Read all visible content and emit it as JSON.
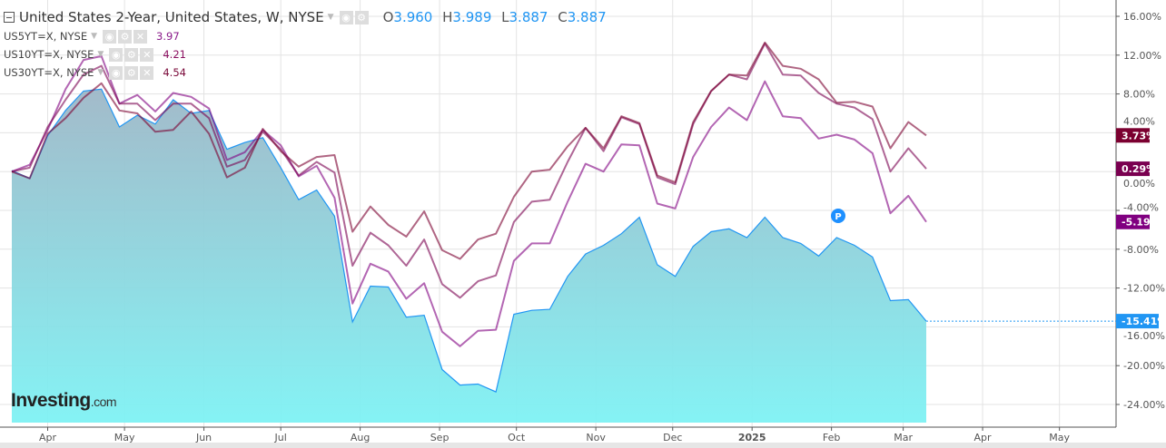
{
  "legend": {
    "title": "United States 2-Year, United States, W, NYSE",
    "ohlc": {
      "o_label": "O",
      "o": "3.960",
      "h_label": "H",
      "h": "3.989",
      "l_label": "L",
      "l": "3.887",
      "c_label": "C",
      "c": "3.887"
    },
    "overlays": [
      {
        "name": "US5YT=X, NYSE",
        "value": "3.97",
        "color": "#8a1a8a"
      },
      {
        "name": "US10YT=X, NYSE",
        "value": "4.21",
        "color": "#8b1060"
      },
      {
        "name": "US30YT=X, NYSE",
        "value": "4.54",
        "color": "#7a0a3a"
      }
    ],
    "icons": [
      "eye-icon",
      "gear-icon",
      "close-icon"
    ]
  },
  "logo": {
    "text": "Investing",
    "suffix": ".com"
  },
  "marker": {
    "label": "P",
    "color": "#1e90ff"
  },
  "chart_data": {
    "type": "line",
    "x": [
      "2024-03-18",
      "2024-03-25",
      "2024-04-01",
      "2024-04-08",
      "2024-04-15",
      "2024-04-22",
      "2024-04-29",
      "2024-05-06",
      "2024-05-13",
      "2024-05-20",
      "2024-05-27",
      "2024-06-03",
      "2024-06-10",
      "2024-06-17",
      "2024-06-24",
      "2024-07-01",
      "2024-07-08",
      "2024-07-15",
      "2024-07-22",
      "2024-07-29",
      "2024-08-05",
      "2024-08-12",
      "2024-08-19",
      "2024-08-26",
      "2024-09-02",
      "2024-09-09",
      "2024-09-16",
      "2024-09-23",
      "2024-09-30",
      "2024-10-07",
      "2024-10-14",
      "2024-10-21",
      "2024-10-28",
      "2024-11-04",
      "2024-11-11",
      "2024-11-18",
      "2024-11-25",
      "2024-12-02",
      "2024-12-09",
      "2024-12-16",
      "2024-12-23",
      "2024-12-30",
      "2025-01-06",
      "2025-01-13",
      "2025-01-20",
      "2025-01-27",
      "2025-02-03",
      "2025-02-10",
      "2025-02-17",
      "2025-02-24",
      "2025-03-03",
      "2025-03-10"
    ],
    "series": [
      {
        "name": "United States 2-Year",
        "style": "area",
        "color": "#2196f3",
        "last_label": "-15.41%",
        "values": [
          0.1,
          -0.7,
          3.7,
          6.3,
          8.3,
          8.5,
          4.6,
          5.8,
          4.9,
          7.4,
          6.0,
          6.3,
          2.3,
          3.0,
          3.5,
          0.4,
          -2.9,
          -1.9,
          -4.6,
          -15.5,
          -11.8,
          -11.9,
          -15.0,
          -14.8,
          -20.4,
          -22.0,
          -21.9,
          -22.7,
          -14.7,
          -14.3,
          -14.2,
          -10.8,
          -8.5,
          -7.6,
          -6.4,
          -4.7,
          -9.6,
          -10.8,
          -7.7,
          -6.2,
          -5.9,
          -6.8,
          -4.7,
          -6.8,
          -7.4,
          -8.7,
          -6.8,
          -7.6,
          -8.8,
          -13.3,
          -13.2,
          -15.41
        ]
      },
      {
        "name": "US5YT=X",
        "style": "line",
        "color": "#800080",
        "last_label": "-5.19%",
        "values": [
          0.0,
          0.7,
          4.3,
          8.5,
          11.5,
          11.9,
          7.0,
          7.9,
          6.2,
          8.1,
          7.7,
          6.5,
          1.2,
          2.0,
          4.3,
          2.7,
          -0.5,
          0.6,
          -2.7,
          -13.6,
          -9.5,
          -10.3,
          -13.1,
          -11.5,
          -16.5,
          -18.0,
          -16.4,
          -16.3,
          -9.2,
          -7.4,
          -7.4,
          -3.1,
          0.8,
          0.0,
          2.8,
          2.7,
          -3.3,
          -3.8,
          1.5,
          4.6,
          6.6,
          5.3,
          9.3,
          5.7,
          5.5,
          3.4,
          3.8,
          3.3,
          1.9,
          -4.3,
          -2.5,
          -5.19
        ]
      },
      {
        "name": "US10YT=X",
        "style": "line",
        "color": "#7a0050",
        "last_label": "0.29%",
        "values": [
          0.0,
          0.4,
          4.6,
          7.4,
          10.0,
          10.9,
          7.0,
          7.0,
          5.3,
          7.0,
          7.0,
          5.5,
          0.5,
          1.2,
          4.1,
          2.3,
          -0.4,
          1.0,
          -0.1,
          -9.7,
          -6.3,
          -7.6,
          -9.7,
          -7.0,
          -11.6,
          -13.0,
          -11.3,
          -10.7,
          -5.2,
          -3.1,
          -2.9,
          1.0,
          4.5,
          2.1,
          5.6,
          4.9,
          -0.6,
          -1.3,
          4.9,
          8.3,
          10.0,
          9.5,
          13.2,
          10.0,
          9.9,
          8.1,
          7.0,
          6.6,
          5.4,
          0.0,
          2.4,
          0.29
        ]
      },
      {
        "name": "US30YT=X",
        "style": "line",
        "color": "#7b0030",
        "last_label": "3.73%",
        "values": [
          0.0,
          -0.7,
          3.9,
          5.5,
          7.6,
          9.1,
          6.3,
          6.0,
          4.1,
          4.3,
          6.2,
          3.9,
          -0.6,
          0.4,
          4.4,
          2.1,
          0.5,
          1.5,
          1.7,
          -6.2,
          -3.6,
          -5.5,
          -6.7,
          -4.1,
          -8.1,
          -9.0,
          -7.0,
          -6.4,
          -2.6,
          0.0,
          0.2,
          2.6,
          4.5,
          2.4,
          5.7,
          5.0,
          -0.4,
          -1.1,
          5.1,
          8.3,
          10.0,
          9.9,
          13.3,
          10.9,
          10.6,
          9.5,
          7.1,
          7.2,
          6.7,
          2.4,
          5.1,
          3.73
        ]
      }
    ],
    "yticks": [
      16,
      12,
      8,
      4,
      0,
      -4,
      -8,
      -12,
      -16,
      -20,
      -24
    ],
    "ytick_labels": [
      "16.00%",
      "12.00%",
      "8.00%",
      "4.00%",
      "0.00%",
      "-4.00%",
      "-8.00%",
      "-12.00%",
      "-16.00%",
      "-20.00%",
      "-24.00%"
    ],
    "ylim": [
      -25.5,
      17.7
    ],
    "xlim": [
      "2024-03-13",
      "2025-05-23"
    ],
    "xticks": [
      {
        "date": "2024-04-01",
        "label": "Apr"
      },
      {
        "date": "2024-05-01",
        "label": "May"
      },
      {
        "date": "2024-06-01",
        "label": "Jun"
      },
      {
        "date": "2024-07-01",
        "label": "Jul"
      },
      {
        "date": "2024-08-01",
        "label": "Aug"
      },
      {
        "date": "2024-09-01",
        "label": "Sep"
      },
      {
        "date": "2024-10-01",
        "label": "Oct"
      },
      {
        "date": "2024-11-01",
        "label": "Nov"
      },
      {
        "date": "2024-12-01",
        "label": "Dec"
      },
      {
        "date": "2025-01-01",
        "label": "2025"
      },
      {
        "date": "2025-02-01",
        "label": "Feb"
      },
      {
        "date": "2025-03-01",
        "label": "Mar"
      },
      {
        "date": "2025-04-01",
        "label": "Apr"
      },
      {
        "date": "2025-05-01",
        "label": "May"
      }
    ],
    "grid": true,
    "y_axis_position": "right"
  }
}
